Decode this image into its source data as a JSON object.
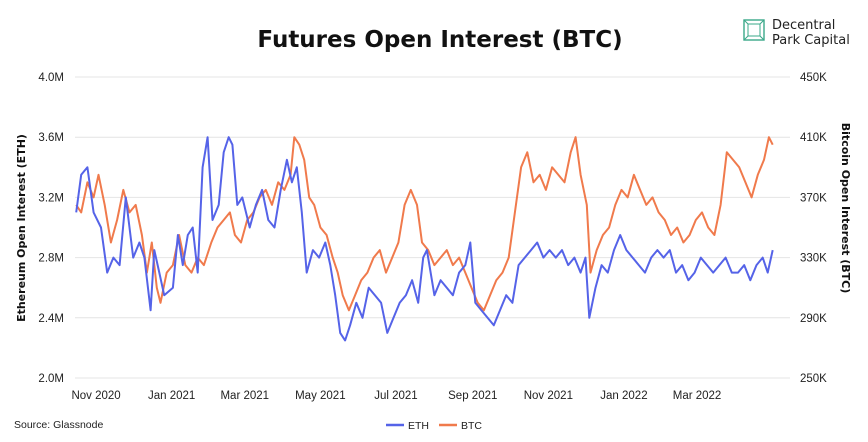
{
  "logo": {
    "line1": "Decentral",
    "line2": "Park Capital"
  },
  "source": "Source: Glassnode",
  "colors": {
    "eth": "#5563e8",
    "btc": "#f07a4c",
    "grid": "#e4e4e4",
    "logo": "#3aa889"
  },
  "chart_data": {
    "type": "line",
    "title": "Futures Open Interest (BTC)",
    "ylabel_left": "Ethereum Open Interest (ETH)",
    "ylabel_right": "Bitcoin Open Interest (BTC)",
    "ylim_left": [
      2000000,
      4000000
    ],
    "ylim_right": [
      250000,
      450000
    ],
    "yticks_left": [
      "2.0M",
      "2.4M",
      "2.8M",
      "3.2M",
      "3.6M",
      "4.0M"
    ],
    "yticks_right": [
      "250K",
      "290K",
      "330K",
      "370K",
      "410K",
      "450K"
    ],
    "xlim": [
      "2020-10-15",
      "2022-05-15"
    ],
    "xticks": [
      {
        "date": "2020-11-01",
        "label": "Nov 2020"
      },
      {
        "date": "2021-01-01",
        "label": "Jan 2021"
      },
      {
        "date": "2021-03-01",
        "label": "Mar 2021"
      },
      {
        "date": "2021-05-01",
        "label": "May 2021"
      },
      {
        "date": "2021-07-01",
        "label": "Jul 2021"
      },
      {
        "date": "2021-09-01",
        "label": "Sep 2021"
      },
      {
        "date": "2021-11-01",
        "label": "Nov 2021"
      },
      {
        "date": "2022-01-01",
        "label": "Jan 2022"
      },
      {
        "date": "2022-03-01",
        "label": "Mar 2022"
      }
    ],
    "grid": true,
    "legend_position": "bottom-center",
    "series": [
      {
        "name": "ETH",
        "axis": "left",
        "points": [
          [
            "2020-10-16",
            3100000
          ],
          [
            "2020-10-20",
            3350000
          ],
          [
            "2020-10-25",
            3400000
          ],
          [
            "2020-10-30",
            3100000
          ],
          [
            "2020-11-05",
            3000000
          ],
          [
            "2020-11-10",
            2700000
          ],
          [
            "2020-11-15",
            2800000
          ],
          [
            "2020-11-20",
            2750000
          ],
          [
            "2020-11-25",
            3200000
          ],
          [
            "2020-12-01",
            2800000
          ],
          [
            "2020-12-06",
            2900000
          ],
          [
            "2020-12-10",
            2800000
          ],
          [
            "2020-12-15",
            2450000
          ],
          [
            "2020-12-18",
            2850000
          ],
          [
            "2020-12-22",
            2700000
          ],
          [
            "2020-12-26",
            2550000
          ],
          [
            "2021-01-02",
            2600000
          ],
          [
            "2021-01-06",
            2950000
          ],
          [
            "2021-01-10",
            2750000
          ],
          [
            "2021-01-14",
            2950000
          ],
          [
            "2021-01-18",
            3000000
          ],
          [
            "2021-01-22",
            2700000
          ],
          [
            "2021-01-26",
            3400000
          ],
          [
            "2021-01-30",
            3600000
          ],
          [
            "2021-02-03",
            3050000
          ],
          [
            "2021-02-08",
            3150000
          ],
          [
            "2021-02-12",
            3500000
          ],
          [
            "2021-02-16",
            3600000
          ],
          [
            "2021-02-19",
            3550000
          ],
          [
            "2021-02-23",
            3150000
          ],
          [
            "2021-02-27",
            3200000
          ],
          [
            "2021-03-05",
            3000000
          ],
          [
            "2021-03-10",
            3150000
          ],
          [
            "2021-03-15",
            3250000
          ],
          [
            "2021-03-20",
            3050000
          ],
          [
            "2021-03-25",
            3000000
          ],
          [
            "2021-03-30",
            3250000
          ],
          [
            "2021-04-04",
            3450000
          ],
          [
            "2021-04-08",
            3300000
          ],
          [
            "2021-04-12",
            3400000
          ],
          [
            "2021-04-16",
            3100000
          ],
          [
            "2021-04-20",
            2700000
          ],
          [
            "2021-04-25",
            2850000
          ],
          [
            "2021-04-30",
            2800000
          ],
          [
            "2021-05-05",
            2900000
          ],
          [
            "2021-05-09",
            2750000
          ],
          [
            "2021-05-13",
            2550000
          ],
          [
            "2021-05-17",
            2300000
          ],
          [
            "2021-05-21",
            2250000
          ],
          [
            "2021-05-25",
            2350000
          ],
          [
            "2021-05-30",
            2500000
          ],
          [
            "2021-06-04",
            2400000
          ],
          [
            "2021-06-09",
            2600000
          ],
          [
            "2021-06-14",
            2550000
          ],
          [
            "2021-06-19",
            2500000
          ],
          [
            "2021-06-24",
            2300000
          ],
          [
            "2021-06-29",
            2400000
          ],
          [
            "2021-07-04",
            2500000
          ],
          [
            "2021-07-09",
            2550000
          ],
          [
            "2021-07-14",
            2650000
          ],
          [
            "2021-07-19",
            2500000
          ],
          [
            "2021-07-23",
            2800000
          ],
          [
            "2021-07-26",
            2850000
          ],
          [
            "2021-08-01",
            2550000
          ],
          [
            "2021-08-06",
            2650000
          ],
          [
            "2021-08-11",
            2600000
          ],
          [
            "2021-08-16",
            2550000
          ],
          [
            "2021-08-21",
            2700000
          ],
          [
            "2021-08-26",
            2750000
          ],
          [
            "2021-08-30",
            2900000
          ],
          [
            "2021-09-03",
            2500000
          ],
          [
            "2021-09-08",
            2450000
          ],
          [
            "2021-09-13",
            2400000
          ],
          [
            "2021-09-18",
            2350000
          ],
          [
            "2021-09-23",
            2450000
          ],
          [
            "2021-09-28",
            2550000
          ],
          [
            "2021-10-03",
            2500000
          ],
          [
            "2021-10-08",
            2750000
          ],
          [
            "2021-10-13",
            2800000
          ],
          [
            "2021-10-18",
            2850000
          ],
          [
            "2021-10-23",
            2900000
          ],
          [
            "2021-10-28",
            2800000
          ],
          [
            "2021-11-02",
            2850000
          ],
          [
            "2021-11-07",
            2800000
          ],
          [
            "2021-11-12",
            2850000
          ],
          [
            "2021-11-17",
            2750000
          ],
          [
            "2021-11-22",
            2800000
          ],
          [
            "2021-11-27",
            2700000
          ],
          [
            "2021-12-01",
            2800000
          ],
          [
            "2021-12-04",
            2400000
          ],
          [
            "2021-12-09",
            2600000
          ],
          [
            "2021-12-14",
            2750000
          ],
          [
            "2021-12-19",
            2700000
          ],
          [
            "2021-12-24",
            2850000
          ],
          [
            "2021-12-29",
            2950000
          ],
          [
            "2022-01-03",
            2850000
          ],
          [
            "2022-01-08",
            2800000
          ],
          [
            "2022-01-13",
            2750000
          ],
          [
            "2022-01-18",
            2700000
          ],
          [
            "2022-01-23",
            2800000
          ],
          [
            "2022-01-28",
            2850000
          ],
          [
            "2022-02-02",
            2800000
          ],
          [
            "2022-02-07",
            2850000
          ],
          [
            "2022-02-12",
            2700000
          ],
          [
            "2022-02-17",
            2750000
          ],
          [
            "2022-02-22",
            2650000
          ],
          [
            "2022-02-27",
            2700000
          ],
          [
            "2022-03-04",
            2800000
          ],
          [
            "2022-03-09",
            2750000
          ],
          [
            "2022-03-14",
            2700000
          ],
          [
            "2022-03-19",
            2750000
          ],
          [
            "2022-03-24",
            2800000
          ],
          [
            "2022-03-29",
            2700000
          ],
          [
            "2022-04-03",
            2700000
          ],
          [
            "2022-04-08",
            2750000
          ],
          [
            "2022-04-13",
            2650000
          ],
          [
            "2022-04-18",
            2750000
          ],
          [
            "2022-04-23",
            2800000
          ],
          [
            "2022-04-27",
            2700000
          ],
          [
            "2022-05-01",
            2850000
          ]
        ]
      },
      {
        "name": "BTC",
        "axis": "right",
        "points": [
          [
            "2020-10-16",
            365000
          ],
          [
            "2020-10-20",
            360000
          ],
          [
            "2020-10-25",
            380000
          ],
          [
            "2020-10-30",
            370000
          ],
          [
            "2020-11-03",
            385000
          ],
          [
            "2020-11-08",
            365000
          ],
          [
            "2020-11-13",
            340000
          ],
          [
            "2020-11-18",
            355000
          ],
          [
            "2020-11-23",
            375000
          ],
          [
            "2020-11-28",
            360000
          ],
          [
            "2020-12-03",
            365000
          ],
          [
            "2020-12-08",
            345000
          ],
          [
            "2020-12-12",
            320000
          ],
          [
            "2020-12-16",
            340000
          ],
          [
            "2020-12-20",
            310000
          ],
          [
            "2020-12-23",
            300000
          ],
          [
            "2020-12-28",
            320000
          ],
          [
            "2021-01-02",
            325000
          ],
          [
            "2021-01-07",
            345000
          ],
          [
            "2021-01-12",
            325000
          ],
          [
            "2021-01-17",
            320000
          ],
          [
            "2021-01-22",
            330000
          ],
          [
            "2021-01-27",
            325000
          ],
          [
            "2021-02-02",
            340000
          ],
          [
            "2021-02-07",
            350000
          ],
          [
            "2021-02-12",
            355000
          ],
          [
            "2021-02-17",
            360000
          ],
          [
            "2021-02-21",
            345000
          ],
          [
            "2021-02-26",
            340000
          ],
          [
            "2021-03-03",
            355000
          ],
          [
            "2021-03-08",
            360000
          ],
          [
            "2021-03-13",
            370000
          ],
          [
            "2021-03-18",
            375000
          ],
          [
            "2021-03-23",
            365000
          ],
          [
            "2021-03-28",
            380000
          ],
          [
            "2021-04-02",
            375000
          ],
          [
            "2021-04-07",
            385000
          ],
          [
            "2021-04-10",
            410000
          ],
          [
            "2021-04-14",
            405000
          ],
          [
            "2021-04-18",
            395000
          ],
          [
            "2021-04-22",
            370000
          ],
          [
            "2021-04-26",
            365000
          ],
          [
            "2021-05-01",
            350000
          ],
          [
            "2021-05-06",
            345000
          ],
          [
            "2021-05-11",
            330000
          ],
          [
            "2021-05-15",
            320000
          ],
          [
            "2021-05-19",
            305000
          ],
          [
            "2021-05-24",
            295000
          ],
          [
            "2021-05-29",
            305000
          ],
          [
            "2021-06-03",
            315000
          ],
          [
            "2021-06-08",
            320000
          ],
          [
            "2021-06-13",
            330000
          ],
          [
            "2021-06-18",
            335000
          ],
          [
            "2021-06-23",
            320000
          ],
          [
            "2021-06-28",
            330000
          ],
          [
            "2021-07-03",
            340000
          ],
          [
            "2021-07-08",
            365000
          ],
          [
            "2021-07-13",
            375000
          ],
          [
            "2021-07-18",
            365000
          ],
          [
            "2021-07-22",
            340000
          ],
          [
            "2021-07-27",
            335000
          ],
          [
            "2021-08-01",
            325000
          ],
          [
            "2021-08-06",
            330000
          ],
          [
            "2021-08-11",
            335000
          ],
          [
            "2021-08-16",
            325000
          ],
          [
            "2021-08-21",
            330000
          ],
          [
            "2021-08-26",
            320000
          ],
          [
            "2021-08-31",
            310000
          ],
          [
            "2021-09-05",
            300000
          ],
          [
            "2021-09-10",
            295000
          ],
          [
            "2021-09-15",
            305000
          ],
          [
            "2021-09-20",
            315000
          ],
          [
            "2021-09-25",
            320000
          ],
          [
            "2021-09-30",
            330000
          ],
          [
            "2021-10-05",
            360000
          ],
          [
            "2021-10-10",
            390000
          ],
          [
            "2021-10-15",
            400000
          ],
          [
            "2021-10-20",
            380000
          ],
          [
            "2021-10-25",
            385000
          ],
          [
            "2021-10-30",
            375000
          ],
          [
            "2021-11-04",
            390000
          ],
          [
            "2021-11-09",
            385000
          ],
          [
            "2021-11-14",
            380000
          ],
          [
            "2021-11-19",
            400000
          ],
          [
            "2021-11-23",
            410000
          ],
          [
            "2021-11-27",
            385000
          ],
          [
            "2021-12-02",
            365000
          ],
          [
            "2021-12-05",
            320000
          ],
          [
            "2021-12-10",
            335000
          ],
          [
            "2021-12-15",
            345000
          ],
          [
            "2021-12-20",
            350000
          ],
          [
            "2021-12-25",
            365000
          ],
          [
            "2021-12-30",
            375000
          ],
          [
            "2022-01-04",
            370000
          ],
          [
            "2022-01-09",
            385000
          ],
          [
            "2022-01-14",
            375000
          ],
          [
            "2022-01-19",
            365000
          ],
          [
            "2022-01-24",
            370000
          ],
          [
            "2022-01-29",
            360000
          ],
          [
            "2022-02-03",
            355000
          ],
          [
            "2022-02-08",
            345000
          ],
          [
            "2022-02-13",
            350000
          ],
          [
            "2022-02-18",
            340000
          ],
          [
            "2022-02-23",
            345000
          ],
          [
            "2022-02-28",
            355000
          ],
          [
            "2022-03-05",
            360000
          ],
          [
            "2022-03-10",
            350000
          ],
          [
            "2022-03-15",
            345000
          ],
          [
            "2022-03-20",
            365000
          ],
          [
            "2022-03-25",
            400000
          ],
          [
            "2022-03-30",
            395000
          ],
          [
            "2022-04-04",
            390000
          ],
          [
            "2022-04-09",
            380000
          ],
          [
            "2022-04-14",
            370000
          ],
          [
            "2022-04-19",
            385000
          ],
          [
            "2022-04-24",
            395000
          ],
          [
            "2022-04-28",
            410000
          ],
          [
            "2022-05-01",
            405000
          ]
        ]
      }
    ]
  }
}
